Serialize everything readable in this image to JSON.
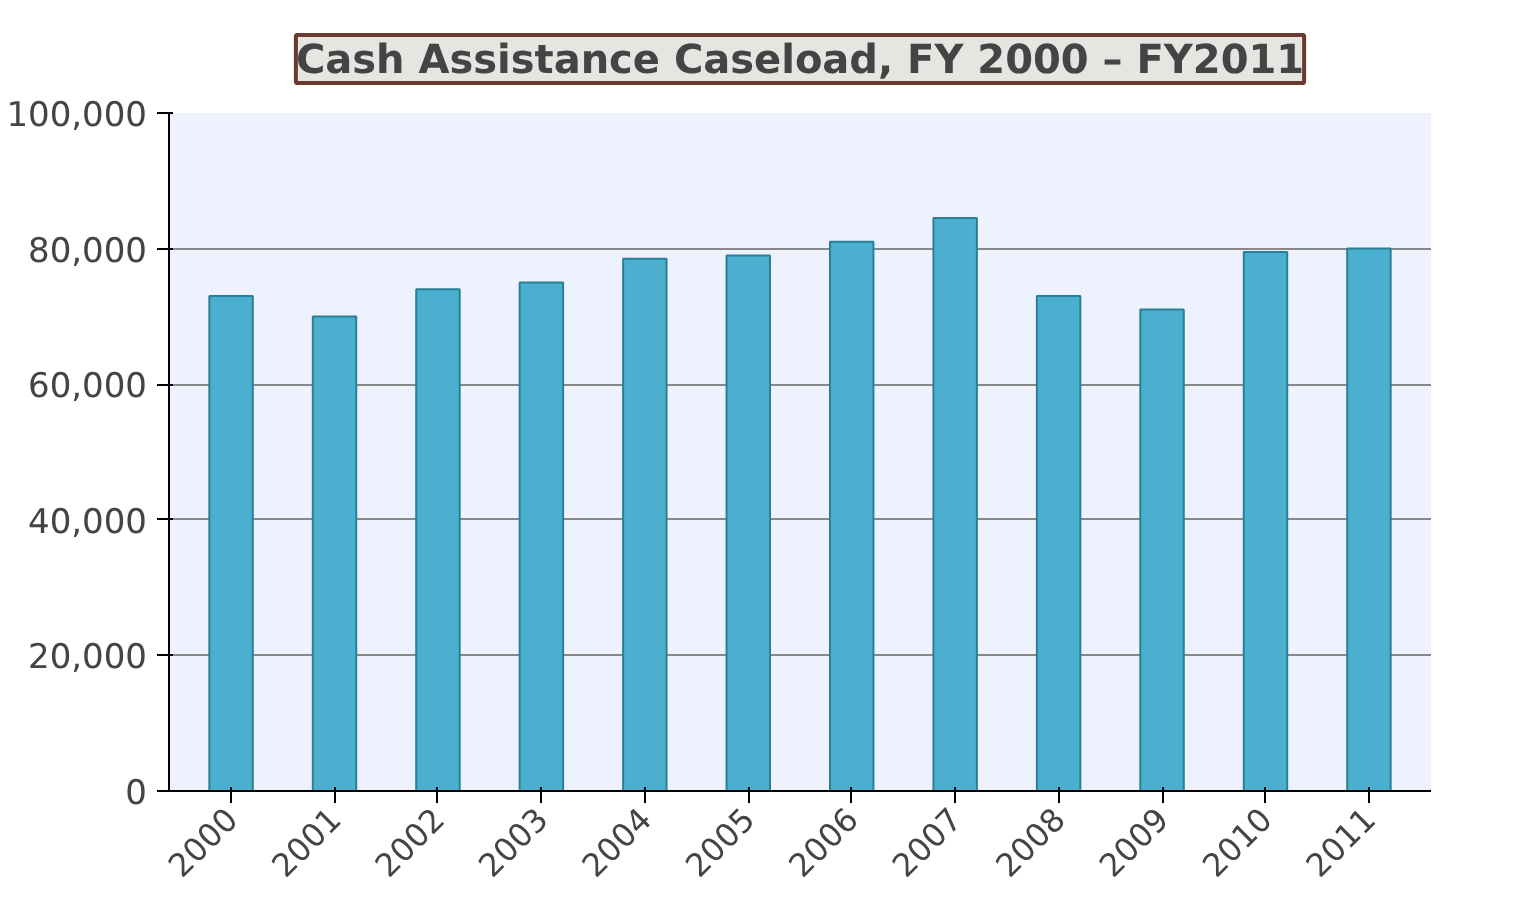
{
  "chart_data": {
    "type": "bar",
    "title": "Cash Assistance Caseload, FY 2000 – FY2011",
    "categories": [
      "2000",
      "2001",
      "2002",
      "2003",
      "2004",
      "2005",
      "2006",
      "2007",
      "2008",
      "2009",
      "2010",
      "2011"
    ],
    "values": [
      73000,
      70000,
      74000,
      75000,
      78500,
      79000,
      81000,
      84500,
      73000,
      71000,
      79500,
      80000
    ],
    "color": "#4bafd0",
    "ylim": [
      0,
      100000
    ],
    "yticks": [
      {
        "value": 0,
        "label": "0"
      },
      {
        "value": 20000,
        "label": "20,000"
      },
      {
        "value": 40000,
        "label": "40,000"
      },
      {
        "value": 60000,
        "label": "60,000"
      },
      {
        "value": 80000,
        "label": "80,000"
      },
      {
        "value": 100000,
        "label": "100,000"
      }
    ],
    "grid": "y"
  }
}
